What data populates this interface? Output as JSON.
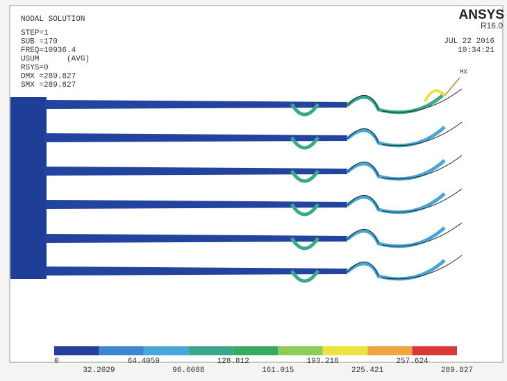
{
  "header": {
    "title": "NODAL SOLUTION",
    "lines": [
      "STEP=1",
      "SUB =170",
      "FREQ=10936.4",
      "USUM      (AVG)",
      "RSYS=0",
      "DMX =289.827",
      "SMX =289.827"
    ]
  },
  "brand": {
    "name": "ANSYS",
    "version": "R16.0",
    "date": "JUL 22 2016",
    "time": "10:34:21"
  },
  "marker": "MX",
  "legend": {
    "colors": [
      "#24409c",
      "#3b86cf",
      "#4aa6d6",
      "#3aa88c",
      "#3ba860",
      "#8ccd58",
      "#eee23e",
      "#f0a63e",
      "#d8383a"
    ],
    "labels": [
      "0",
      "32.2029",
      "64.4059",
      "96.6088",
      "128.812",
      "161.015",
      "193.218",
      "225.421",
      "257.624",
      "289.827"
    ]
  }
}
